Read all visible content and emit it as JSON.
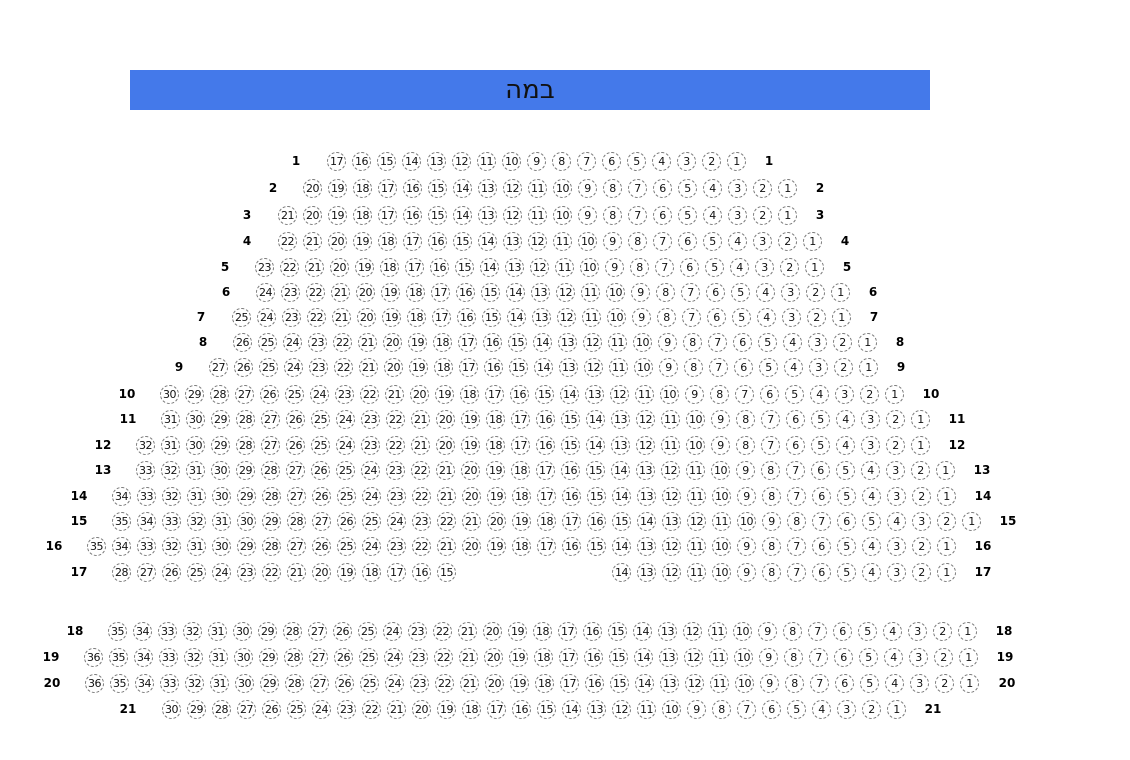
{
  "stage": {
    "label": "במה",
    "color": "#4479ea"
  },
  "rows": [
    {
      "label": "1",
      "segments": [
        [
          17,
          1
        ]
      ]
    },
    {
      "label": "2",
      "segments": [
        [
          20,
          1
        ]
      ]
    },
    {
      "label": "3",
      "segments": [
        [
          21,
          1
        ]
      ]
    },
    {
      "label": "4",
      "segments": [
        [
          22,
          1
        ]
      ]
    },
    {
      "label": "5",
      "segments": [
        [
          23,
          1
        ]
      ]
    },
    {
      "label": "6",
      "segments": [
        [
          24,
          1
        ]
      ]
    },
    {
      "label": "7",
      "segments": [
        [
          25,
          1
        ]
      ]
    },
    {
      "label": "8",
      "segments": [
        [
          26,
          1
        ]
      ]
    },
    {
      "label": "9",
      "segments": [
        [
          27,
          1
        ]
      ]
    },
    {
      "label": "10",
      "segments": [
        [
          30,
          1
        ]
      ]
    },
    {
      "label": "11",
      "segments": [
        [
          31,
          1
        ]
      ]
    },
    {
      "label": "12",
      "segments": [
        [
          32,
          1
        ]
      ]
    },
    {
      "label": "13",
      "segments": [
        [
          33,
          1
        ]
      ]
    },
    {
      "label": "14",
      "segments": [
        [
          34,
          1
        ]
      ]
    },
    {
      "label": "15",
      "segments": [
        [
          35,
          1
        ]
      ]
    },
    {
      "label": "16",
      "segments": [
        [
          35,
          1
        ]
      ]
    },
    {
      "label": "17",
      "segments": [
        [
          28,
          15
        ],
        [
          14,
          1
        ]
      ]
    },
    {
      "label": "18",
      "segments": [
        [
          35,
          1
        ]
      ]
    },
    {
      "label": "19",
      "segments": [
        [
          36,
          1
        ]
      ]
    },
    {
      "label": "20",
      "segments": [
        [
          36,
          1
        ]
      ]
    },
    {
      "label": "21",
      "segments": [
        [
          30,
          1
        ]
      ]
    }
  ]
}
